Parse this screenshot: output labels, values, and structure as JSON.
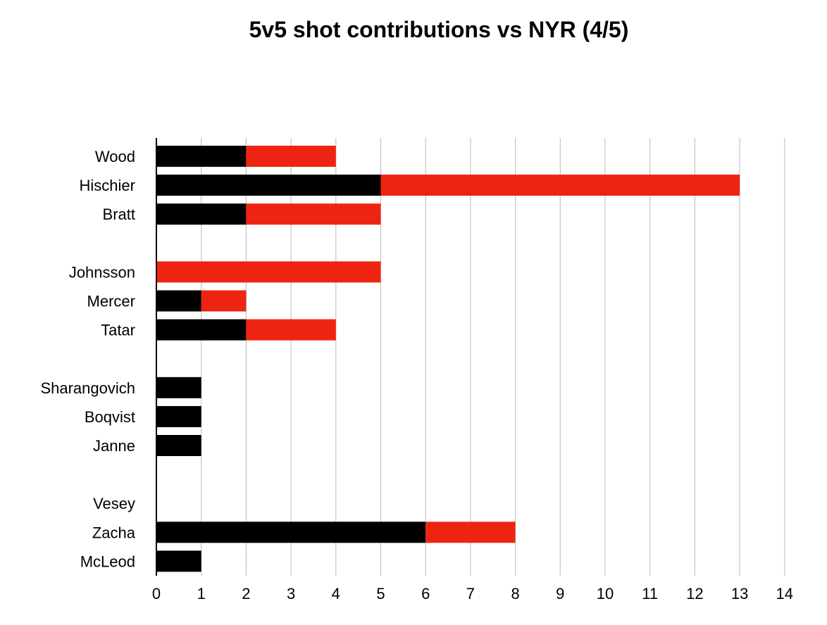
{
  "chart_data": {
    "type": "bar",
    "orientation": "horizontal",
    "stacked": true,
    "title": "5v5 shot contributions vs NYR (4/5)",
    "xlabel": "",
    "ylabel": "",
    "xlim": [
      0,
      14
    ],
    "x_ticks": [
      "0",
      "1",
      "2",
      "3",
      "4",
      "5",
      "6",
      "7",
      "8",
      "9",
      "10",
      "11",
      "12",
      "13",
      "14"
    ],
    "grid": "vertical",
    "legend": "none",
    "categories": [
      "Wood",
      "Hischier",
      "Bratt",
      "",
      "Johnsson",
      "Mercer",
      "Tatar",
      "",
      "Sharangovich",
      "Boqvist",
      "Janne",
      "",
      "Vesey",
      "Zacha",
      "McLeod"
    ],
    "series": [
      {
        "color": "#000000",
        "values": [
          2,
          5,
          2,
          null,
          0,
          1,
          2,
          null,
          1,
          1,
          1,
          null,
          0,
          6,
          1
        ]
      },
      {
        "color": "#ee2412",
        "values": [
          2,
          8,
          3,
          null,
          5,
          1,
          2,
          null,
          0,
          0,
          0,
          null,
          0,
          2,
          0
        ]
      }
    ]
  }
}
